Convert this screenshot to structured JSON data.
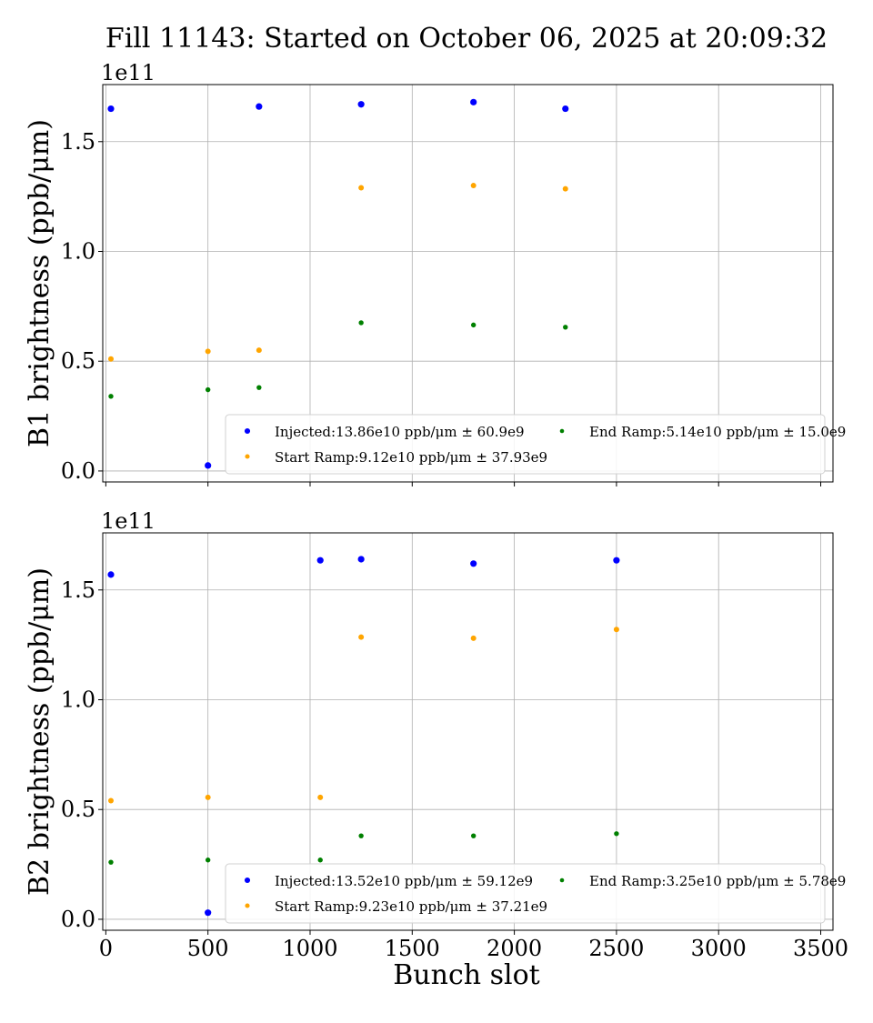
{
  "figure": {
    "title": "Fill 11143: Started on October 06, 2025 at 20:09:32",
    "xlabel": "Bunch slot",
    "colors": {
      "Injected": "#0000ff",
      "Start Ramp": "#ffa500",
      "End Ramp": "#008000"
    }
  },
  "chart_data": [
    {
      "type": "scatter",
      "ylabel": "B1 brightness (ppb/μm)",
      "offset_label": "1e11",
      "xlim": [
        -15,
        3560
      ],
      "ylim": [
        -0.05,
        1.76
      ],
      "y_scale": "×1e11",
      "xticks": [
        0,
        500,
        1000,
        1500,
        2000,
        2500,
        3000,
        3500
      ],
      "xtick_labels": [],
      "yticks": [
        0.0,
        0.5,
        1.0,
        1.5
      ],
      "ytick_labels": [
        "0.0",
        "0.5",
        "1.0",
        "1.5"
      ],
      "grid": true,
      "legend_position": "lower-right",
      "series": [
        {
          "name": "Injected",
          "legend": "Injected:13.86e10 ppb/μm ± 60.9e9",
          "color": "#0000ff",
          "x": [
            25,
            500,
            750,
            1250,
            1800,
            2250
          ],
          "y": [
            1.65,
            0.025,
            1.66,
            1.67,
            1.68,
            1.65
          ]
        },
        {
          "name": "Start Ramp",
          "legend": "Start Ramp:9.12e10 ppb/μm ± 37.93e9",
          "color": "#ffa500",
          "x": [
            25,
            500,
            750,
            1250,
            1800,
            2250
          ],
          "y": [
            0.51,
            0.545,
            0.55,
            1.29,
            1.3,
            1.285
          ]
        },
        {
          "name": "End Ramp",
          "legend": "End Ramp:5.14e10 ppb/μm ± 15.0e9",
          "color": "#008000",
          "x": [
            25,
            500,
            750,
            1250,
            1800,
            2250
          ],
          "y": [
            0.34,
            0.37,
            0.38,
            0.675,
            0.665,
            0.655
          ]
        }
      ]
    },
    {
      "type": "scatter",
      "ylabel": "B2 brightness (ppb/μm)",
      "offset_label": "1e11",
      "xlim": [
        -15,
        3560
      ],
      "ylim": [
        -0.05,
        1.76
      ],
      "y_scale": "×1e11",
      "xticks": [
        0,
        500,
        1000,
        1500,
        2000,
        2500,
        3000,
        3500
      ],
      "xtick_labels": [
        "0",
        "500",
        "1000",
        "1500",
        "2000",
        "2500",
        "3000",
        "3500"
      ],
      "yticks": [
        0.0,
        0.5,
        1.0,
        1.5
      ],
      "ytick_labels": [
        "0.0",
        "0.5",
        "1.0",
        "1.5"
      ],
      "grid": true,
      "legend_position": "lower-right",
      "series": [
        {
          "name": "Injected",
          "legend": "Injected:13.52e10 ppb/μm ± 59.12e9",
          "color": "#0000ff",
          "x": [
            25,
            500,
            1050,
            1250,
            1800,
            2500
          ],
          "y": [
            1.57,
            0.03,
            1.635,
            1.64,
            1.62,
            1.635
          ]
        },
        {
          "name": "Start Ramp",
          "legend": "Start Ramp:9.23e10 ppb/μm ± 37.21e9",
          "color": "#ffa500",
          "x": [
            25,
            500,
            1050,
            1250,
            1800,
            2500
          ],
          "y": [
            0.54,
            0.555,
            0.555,
            1.285,
            1.28,
            1.32
          ]
        },
        {
          "name": "End Ramp",
          "legend": "End Ramp:3.25e10 ppb/μm ± 5.78e9",
          "color": "#008000",
          "x": [
            25,
            500,
            1050,
            1250,
            1800,
            2500
          ],
          "y": [
            0.26,
            0.27,
            0.27,
            0.38,
            0.38,
            0.39
          ]
        }
      ]
    }
  ]
}
